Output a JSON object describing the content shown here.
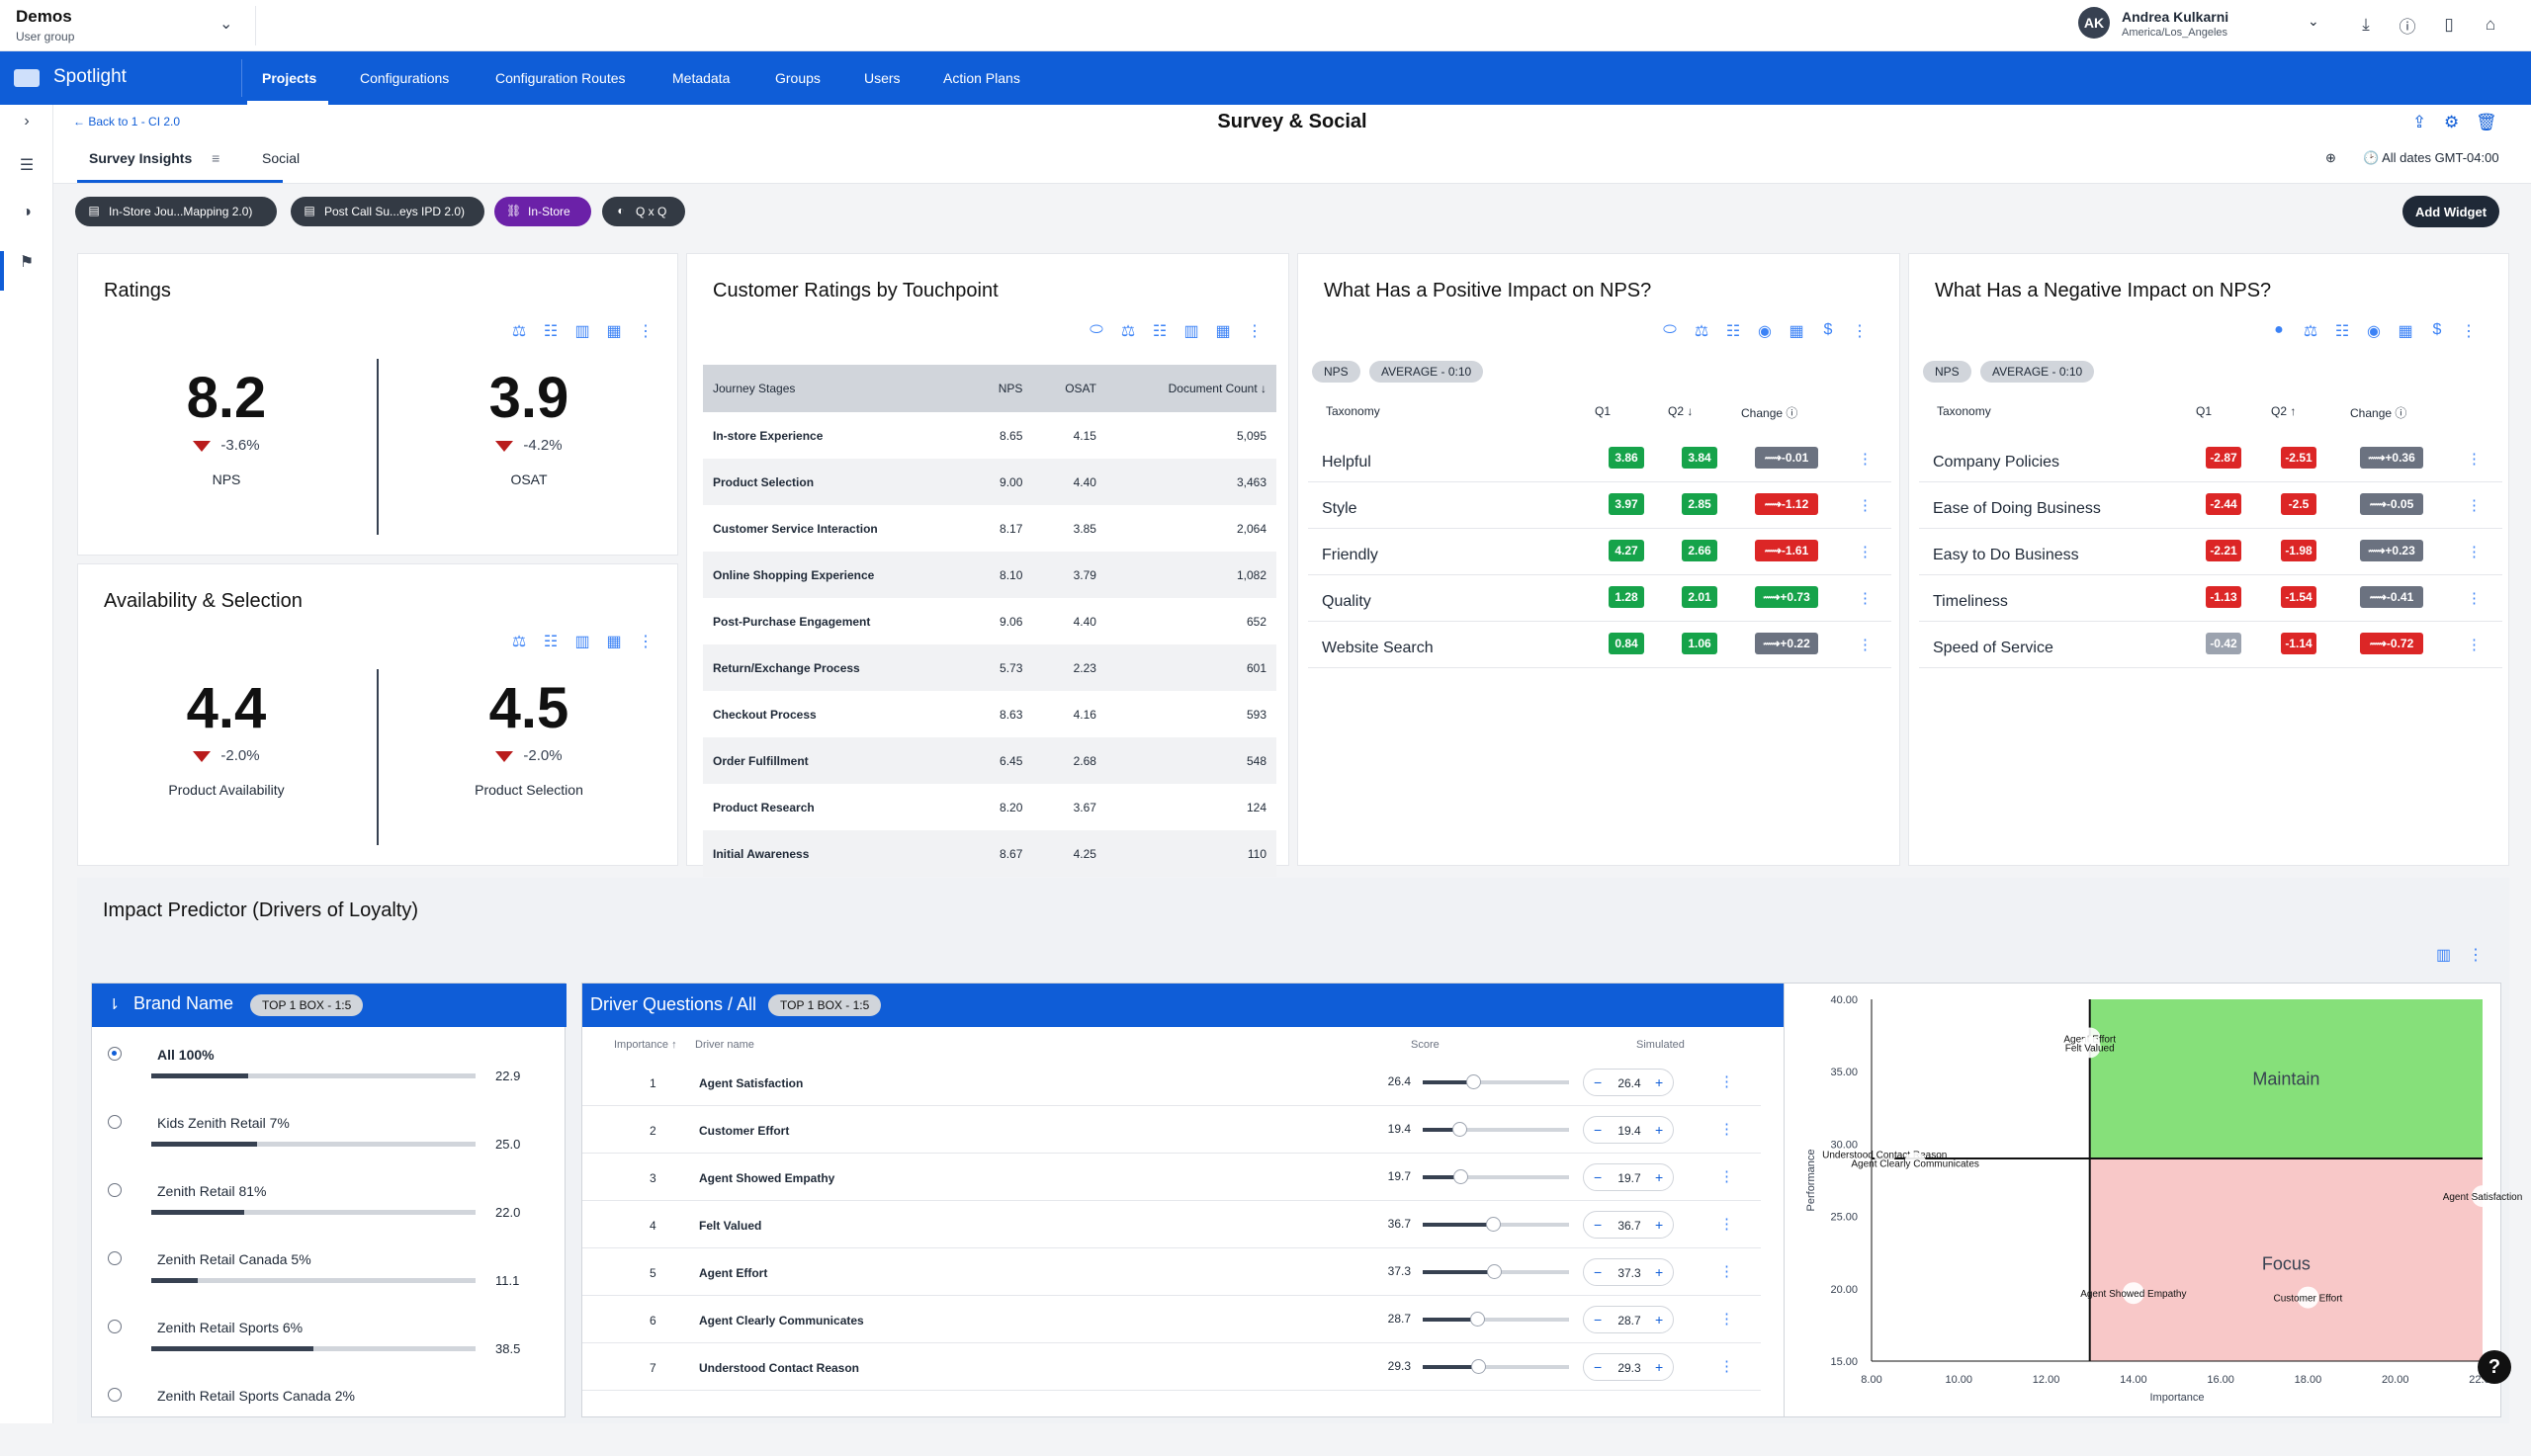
{
  "topbar": {
    "org_name": "Demos",
    "org_sub": "User group",
    "user_initials": "AK",
    "user_name": "Andrea Kulkarni",
    "user_tz": "America/Los_Angeles"
  },
  "nav": {
    "brand": "Spotlight",
    "items": [
      "Projects",
      "Configurations",
      "Configuration Routes",
      "Metadata",
      "Groups",
      "Users",
      "Action Plans"
    ]
  },
  "page": {
    "back": "Back to 1 - CI 2.0",
    "title": "Survey & Social",
    "tabs": [
      "Survey Insights",
      "Social"
    ],
    "dates": "All dates GMT-04:00"
  },
  "chips": [
    "In-Store Jou...Mapping 2.0)",
    "Post Call Su...eys IPD 2.0)",
    "In-Store",
    "Q x Q"
  ],
  "add_widget": "Add Widget",
  "ratings": {
    "title": "Ratings",
    "kpis": [
      {
        "value": "8.2",
        "delta": "-3.6%",
        "label": "NPS"
      },
      {
        "value": "3.9",
        "delta": "-4.2%",
        "label": "OSAT"
      }
    ]
  },
  "availability": {
    "title": "Availability & Selection",
    "kpis": [
      {
        "value": "4.4",
        "delta": "-2.0%",
        "label": "Product Availability"
      },
      {
        "value": "4.5",
        "delta": "-2.0%",
        "label": "Product Selection"
      }
    ]
  },
  "touchpoint": {
    "title": "Customer Ratings by Touchpoint",
    "headers": [
      "Journey Stages",
      "NPS",
      "OSAT",
      "Document Count"
    ],
    "rows": [
      [
        "In-store Experience",
        "8.65",
        "4.15",
        "5,095"
      ],
      [
        "Product Selection",
        "9.00",
        "4.40",
        "3,463"
      ],
      [
        "Customer Service Interaction",
        "8.17",
        "3.85",
        "2,064"
      ],
      [
        "Online Shopping Experience",
        "8.10",
        "3.79",
        "1,082"
      ],
      [
        "Post-Purchase Engagement",
        "9.06",
        "4.40",
        "652"
      ],
      [
        "Return/Exchange Process",
        "5.73",
        "2.23",
        "601"
      ],
      [
        "Checkout Process",
        "8.63",
        "4.16",
        "593"
      ],
      [
        "Order Fulfillment",
        "6.45",
        "2.68",
        "548"
      ],
      [
        "Product Research",
        "8.20",
        "3.67",
        "124"
      ],
      [
        "Initial Awareness",
        "8.67",
        "4.25",
        "110"
      ]
    ]
  },
  "positive": {
    "title": "What Has a Positive Impact on NPS?",
    "pills": [
      "NPS",
      "AVERAGE - 0:10"
    ],
    "headers": [
      "Taxonomy",
      "Q1",
      "Q2",
      "Change"
    ],
    "rows": [
      {
        "name": "Helpful",
        "q1": "3.86",
        "q2": "3.84",
        "change": "-0.01",
        "c1": "g",
        "c2": "g",
        "cc": "gd"
      },
      {
        "name": "Style",
        "q1": "3.97",
        "q2": "2.85",
        "change": "-1.12",
        "c1": "g",
        "c2": "g",
        "cc": "r"
      },
      {
        "name": "Friendly",
        "q1": "4.27",
        "q2": "2.66",
        "change": "-1.61",
        "c1": "g",
        "c2": "g",
        "cc": "r"
      },
      {
        "name": "Quality",
        "q1": "1.28",
        "q2": "2.01",
        "change": "+0.73",
        "c1": "g",
        "c2": "g",
        "cc": "g"
      },
      {
        "name": "Website Search",
        "q1": "0.84",
        "q2": "1.06",
        "change": "+0.22",
        "c1": "g",
        "c2": "g",
        "cc": "gd"
      }
    ]
  },
  "negative": {
    "title": "What Has a Negative Impact on NPS?",
    "pills": [
      "NPS",
      "AVERAGE - 0:10"
    ],
    "headers": [
      "Taxonomy",
      "Q1",
      "Q2",
      "Change"
    ],
    "rows": [
      {
        "name": "Company Policies",
        "q1": "-2.87",
        "q2": "-2.51",
        "change": "+0.36",
        "c1": "r",
        "c2": "r",
        "cc": "gd"
      },
      {
        "name": "Ease of Doing Business",
        "q1": "-2.44",
        "q2": "-2.5",
        "change": "-0.05",
        "c1": "r",
        "c2": "r",
        "cc": "gd"
      },
      {
        "name": "Easy to Do Business",
        "q1": "-2.21",
        "q2": "-1.98",
        "change": "+0.23",
        "c1": "r",
        "c2": "r",
        "cc": "gd"
      },
      {
        "name": "Timeliness",
        "q1": "-1.13",
        "q2": "-1.54",
        "change": "-0.41",
        "c1": "r",
        "c2": "r",
        "cc": "gd"
      },
      {
        "name": "Speed of Service",
        "q1": "-0.42",
        "q2": "-1.14",
        "change": "-0.72",
        "c1": "gr",
        "c2": "r",
        "cc": "r"
      }
    ]
  },
  "impact": {
    "title": "Impact Predictor (Drivers of Loyalty)"
  },
  "brands": {
    "title": "Brand Name",
    "pill": "TOP 1 BOX - 1:5",
    "rows": [
      {
        "name": "All 100%",
        "value": "22.9",
        "pct": 0.229,
        "selected": true
      },
      {
        "name": "Kids Zenith Retail 7%",
        "value": "25.0",
        "pct": 0.25
      },
      {
        "name": "Zenith Retail 81%",
        "value": "22.0",
        "pct": 0.22
      },
      {
        "name": "Zenith Retail Canada 5%",
        "value": "11.1",
        "pct": 0.111
      },
      {
        "name": "Zenith Retail Sports 6%",
        "value": "38.5",
        "pct": 0.385
      },
      {
        "name": "Zenith Retail Sports Canada 2%",
        "value": "",
        "pct": 0
      }
    ]
  },
  "drivers": {
    "title": "Driver Questions / All",
    "pill": "TOP 1 BOX - 1:5",
    "headers": [
      "Importance",
      "Driver name",
      "Score",
      "Simulated"
    ],
    "rows": [
      {
        "rank": "1",
        "name": "Agent Satisfaction",
        "score": "26.4",
        "sim": "26.4",
        "pct": 0.264
      },
      {
        "rank": "2",
        "name": "Customer Effort",
        "score": "19.4",
        "sim": "19.4",
        "pct": 0.194
      },
      {
        "rank": "3",
        "name": "Agent Showed Empathy",
        "score": "19.7",
        "sim": "19.7",
        "pct": 0.197
      },
      {
        "rank": "4",
        "name": "Felt Valued",
        "score": "36.7",
        "sim": "36.7",
        "pct": 0.367
      },
      {
        "rank": "5",
        "name": "Agent Effort",
        "score": "37.3",
        "sim": "37.3",
        "pct": 0.373
      },
      {
        "rank": "6",
        "name": "Agent Clearly Communicates",
        "score": "28.7",
        "sim": "28.7",
        "pct": 0.287
      },
      {
        "rank": "7",
        "name": "Understood Contact Reason",
        "score": "29.3",
        "sim": "29.3",
        "pct": 0.293
      }
    ]
  },
  "chart_data": {
    "type": "scatter",
    "xlabel": "Importance",
    "ylabel": "Performance",
    "xlim": [
      8,
      22
    ],
    "ylim": [
      15,
      40
    ],
    "xticks": [
      "8.00",
      "10.00",
      "12.00",
      "14.00",
      "16.00",
      "18.00",
      "20.00",
      "22.00"
    ],
    "yticks": [
      "15.00",
      "20.00",
      "25.00",
      "30.00",
      "35.00",
      "40.00"
    ],
    "quadrants": [
      "Maintain",
      "Focus"
    ],
    "x_split": 13.0,
    "y_split": 29.0,
    "points": [
      {
        "label": "Agent Effort",
        "x": 13.0,
        "y": 37.3
      },
      {
        "label": "Felt Valued",
        "x": 13.0,
        "y": 36.7
      },
      {
        "label": "Understood Contact Reason",
        "x": 8.3,
        "y": 29.3
      },
      {
        "label": "Agent Clearly Communicates",
        "x": 9.0,
        "y": 28.7
      },
      {
        "label": "Agent Satisfaction",
        "x": 22.0,
        "y": 26.4
      },
      {
        "label": "Agent Showed Empathy",
        "x": 14.0,
        "y": 19.7
      },
      {
        "label": "Customer Effort",
        "x": 18.0,
        "y": 19.4
      }
    ]
  }
}
